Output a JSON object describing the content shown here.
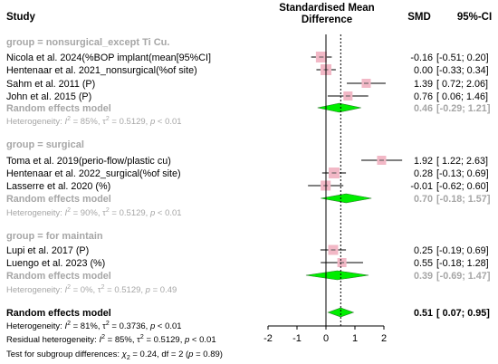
{
  "chart_data": {
    "type": "forest",
    "headers": {
      "study": "Study",
      "effect": "Standardised Mean",
      "effect2": "Difference",
      "smd": "SMD",
      "ci": "95%-CI"
    },
    "axis": {
      "xlim": [
        -2,
        2
      ],
      "ticks": [
        "-2",
        "-1",
        "0",
        "1",
        "2"
      ],
      "null_line": 0,
      "pooled_line": 0.51
    },
    "groups": [
      {
        "title": "group = nonsurgical_except Ti Cu.",
        "studies": [
          {
            "name": "Nicola et al. 2024(%BOP implant(mean[95%CI]",
            "smd": -0.16,
            "lo": -0.51,
            "hi": 0.2,
            "smd_text": "-0.16",
            "ci_text": "[-0.51; 0.20]",
            "w": 12
          },
          {
            "name": "Hentenaar et al. 2021_nonsurgical(%of site)",
            "smd": 0.0,
            "lo": -0.33,
            "hi": 0.34,
            "smd_text": "0.00",
            "ci_text": "[-0.33; 0.34]",
            "w": 12
          },
          {
            "name": "Sahm et al. 2011 (P)",
            "smd": 1.39,
            "lo": 0.72,
            "hi": 2.06,
            "smd_text": "1.39",
            "ci_text": "[ 0.72; 2.06]",
            "w": 10
          },
          {
            "name": "John et al. 2015 (P)",
            "smd": 0.76,
            "lo": 0.06,
            "hi": 1.46,
            "smd_text": "0.76",
            "ci_text": "[ 0.06; 1.46]",
            "w": 10
          }
        ],
        "pooled": {
          "label": "Random effects model",
          "smd": 0.46,
          "lo": -0.29,
          "hi": 1.21,
          "smd_text": "0.46",
          "ci_text": "[-0.29; 1.21]"
        },
        "heterogeneity": {
          "prefix": "Heterogeneity: ",
          "i2": "I",
          "i2_val": " = 85%, ",
          "tau": "τ",
          "tau_val": " = 0.5129, ",
          "p": "p",
          "p_val": " < 0.01"
        }
      },
      {
        "title": "group = surgical",
        "studies": [
          {
            "name": "Toma et al. 2019(perio-flow/plastic cu)",
            "smd": 1.92,
            "lo": 1.22,
            "hi": 2.63,
            "smd_text": "1.92",
            "ci_text": "[ 1.22; 2.63]",
            "w": 10
          },
          {
            "name": "Hentenaar et al. 2022_surgical(%of site)",
            "smd": 0.28,
            "lo": -0.13,
            "hi": 0.69,
            "smd_text": "0.28",
            "ci_text": "[-0.13; 0.69]",
            "w": 12
          },
          {
            "name": "Lasserre et al. 2020 (%)",
            "smd": -0.01,
            "lo": -0.62,
            "hi": 0.6,
            "smd_text": "-0.01",
            "ci_text": "[-0.62; 0.60]",
            "w": 11
          }
        ],
        "pooled": {
          "label": "Random effects model",
          "smd": 0.7,
          "lo": -0.18,
          "hi": 1.57,
          "smd_text": "0.70",
          "ci_text": "[-0.18; 1.57]"
        },
        "heterogeneity": {
          "prefix": "Heterogeneity: ",
          "i2": "I",
          "i2_val": " = 90%, ",
          "tau": "τ",
          "tau_val": " = 0.5129, ",
          "p": "p",
          "p_val": " < 0.01"
        }
      },
      {
        "title": "group = for maintain",
        "studies": [
          {
            "name": "Lupi et al. 2017 (P)",
            "smd": 0.25,
            "lo": -0.19,
            "hi": 0.69,
            "smd_text": "0.25",
            "ci_text": "[-0.19; 0.69]",
            "w": 11
          },
          {
            "name": "Luengo et al. 2023 (%)",
            "smd": 0.55,
            "lo": -0.18,
            "hi": 1.28,
            "smd_text": "0.55",
            "ci_text": "[-0.18; 1.28]",
            "w": 10
          }
        ],
        "pooled": {
          "label": "Random effects model",
          "smd": 0.39,
          "lo": -0.69,
          "hi": 1.47,
          "smd_text": "0.39",
          "ci_text": "[-0.69; 1.47]"
        },
        "heterogeneity": {
          "prefix": "Heterogeneity: ",
          "i2": "I",
          "i2_val": " = 0%, ",
          "tau": "τ",
          "tau_val": " = 0.5129, ",
          "p": "p",
          "p_val": " = 0.49"
        }
      }
    ],
    "overall": {
      "label": "Random effects model",
      "smd": 0.51,
      "lo": 0.07,
      "hi": 0.95,
      "smd_text": "0.51",
      "ci_text": "[ 0.07; 0.95]",
      "heterogeneity": {
        "prefix": "Heterogeneity: ",
        "i2": "I",
        "i2_val": " = 81%, ",
        "tau": "τ",
        "tau_val": " = 0.3736, ",
        "p": "p",
        "p_val": " < 0.01"
      },
      "residual": {
        "prefix": "Residual heterogeneity: ",
        "i2": "I",
        "i2_val": " = 85%, ",
        "tau": "τ",
        "tau_val": " = 0.5129, ",
        "p": "p",
        "p_val": " < 0.01"
      },
      "subgroup": {
        "prefix": "Test for subgroup differences: ",
        "chi": "χ",
        "chi_val": " = 0.24, df = 2 (",
        "p": "p",
        "p_val": " = 0.89)"
      }
    },
    "colors": {
      "square": "#f2b8c6",
      "diamond": "#00ee00",
      "group_text": "#a6a6a6",
      "ci_line": "#000000"
    }
  }
}
